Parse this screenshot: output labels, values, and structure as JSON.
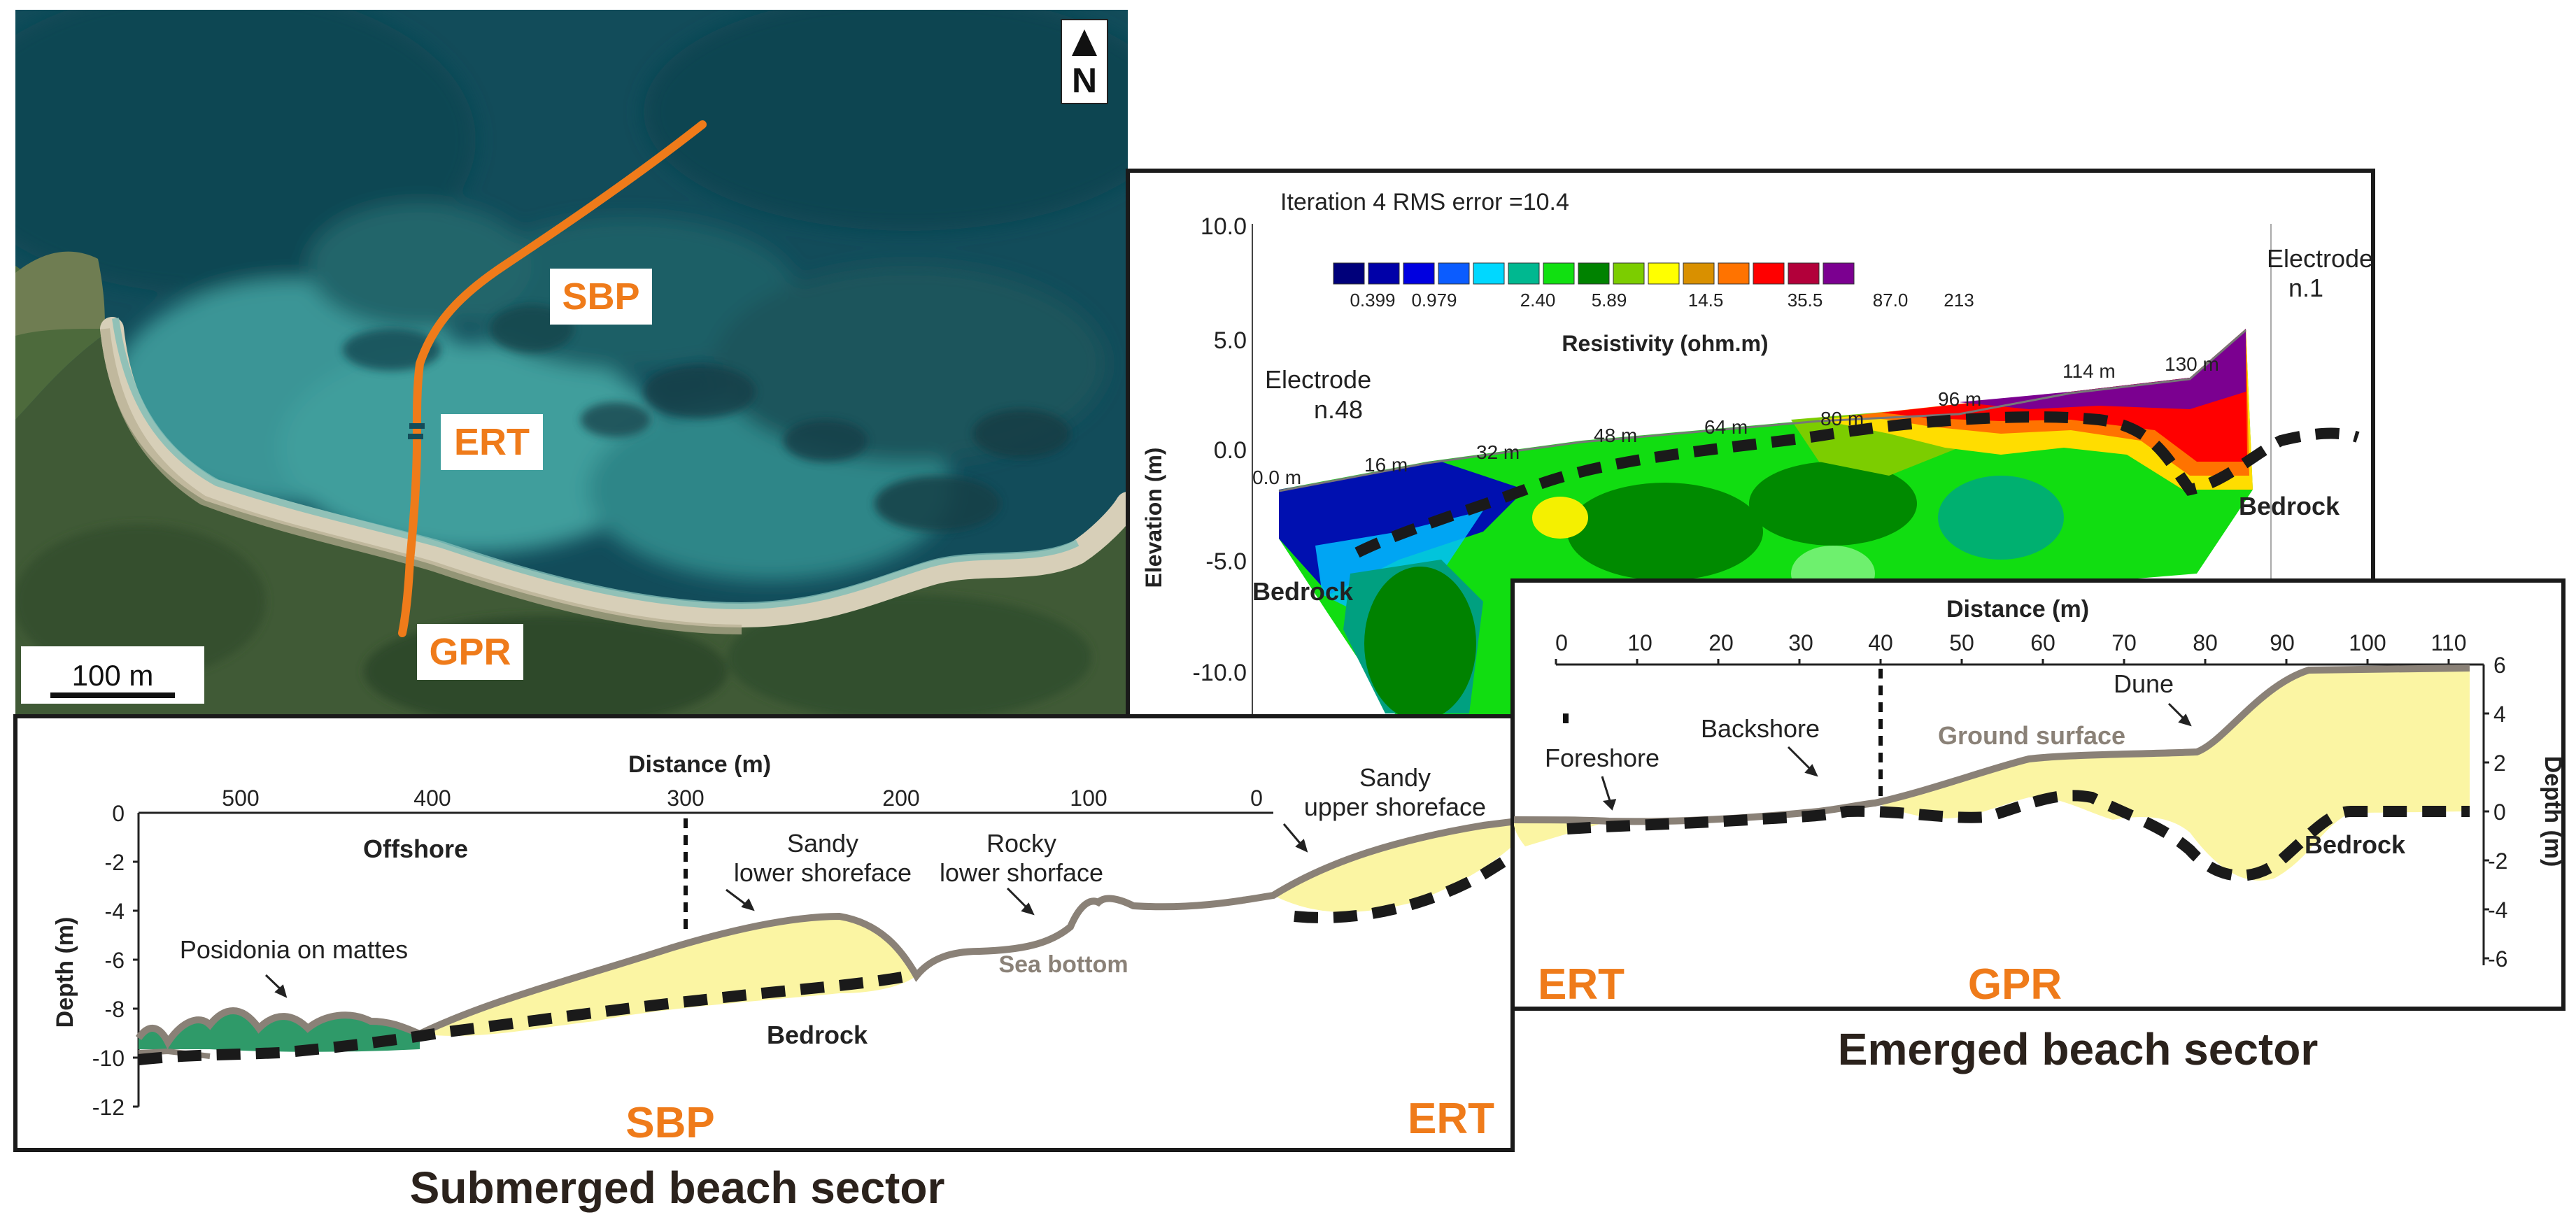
{
  "map": {
    "north_label": "N",
    "scale_label": "100 m",
    "line_labels": {
      "sbp": "SBP",
      "ert": "ERT",
      "gpr": "GPR"
    },
    "colors": {
      "track": "#ef7b1a",
      "sea_deep": "#0f4a57",
      "sea_shallow": "#3e9a98",
      "beach": "#cfc7b0",
      "vegetation": "#3c5a33"
    }
  },
  "ert": {
    "title": "Iteration 4 RMS error =10.4",
    "y_label": "Elevation (m)",
    "y_ticks": [
      "10.0",
      "5.0",
      "0.0",
      "-5.0",
      "-10.0"
    ],
    "colorbar_title": "Resistivity (ohm.m)",
    "colorbar_labels": [
      "0.399",
      "0.979",
      "2.40",
      "5.89",
      "14.5",
      "35.5",
      "87.0",
      "213"
    ],
    "colorbar_colors": [
      "#00007a",
      "#0000a8",
      "#0000e0",
      "#0b5cff",
      "#00d8ff",
      "#00b890",
      "#11e011",
      "#008200",
      "#7ccd00",
      "#ffff00",
      "#d99000",
      "#ff7300",
      "#ff0000",
      "#b2003a",
      "#7b0090"
    ],
    "electrode_left": [
      "Electrode",
      "n.48"
    ],
    "electrode_right": [
      "Electrode",
      "n.1"
    ],
    "distance_marks": [
      "0.0 m",
      "16 m",
      "32 m",
      "48 m",
      "64 m",
      "80 m",
      "96 m",
      "114 m",
      "130 m"
    ],
    "bedrock_left": "Bedrock",
    "bedrock_right": "Bedrock"
  },
  "emerged": {
    "x_title": "Distance (m)",
    "x_ticks": [
      "0",
      "10",
      "20",
      "30",
      "40",
      "50",
      "60",
      "70",
      "80",
      "90",
      "100",
      "110"
    ],
    "y_title": "Depth (m)",
    "y_ticks": [
      "6",
      "4",
      "2",
      "0",
      "-2",
      "-4",
      "-6"
    ],
    "labels": {
      "foreshore": "Foreshore",
      "backshore": "Backshore",
      "ground_surface": "Ground surface",
      "dune": "Dune",
      "bedrock": "Bedrock"
    },
    "method_ert": "ERT",
    "method_gpr": "GPR",
    "sector_title": "Emerged beach sector"
  },
  "submerged": {
    "x_title": "Distance (m)",
    "x_ticks": [
      "500",
      "400",
      "300",
      "200",
      "100",
      "0"
    ],
    "y_title": "Depth (m)",
    "y_ticks": [
      "0",
      "-2",
      "-4",
      "-6",
      "-8",
      "-10",
      "-12"
    ],
    "labels": {
      "offshore": "Offshore",
      "sandy_lower": [
        "Sandy",
        "lower shoreface"
      ],
      "rocky_lower": [
        "Rocky",
        "lower shorface"
      ],
      "sandy_upper": [
        "Sandy",
        "upper shoreface"
      ],
      "posidonia": "Posidonia on mattes",
      "sea_bottom": "Sea bottom",
      "bedrock": "Bedrock"
    },
    "method_sbp": "SBP",
    "method_ert": "ERT",
    "sector_title": "Submerged beach sector"
  },
  "colors": {
    "sand": "#fbf5a3",
    "profile": "#8a8177",
    "posidonia": "#2f9a69",
    "method_label": "#ef7b1a",
    "sector_title": "#2b221c"
  }
}
